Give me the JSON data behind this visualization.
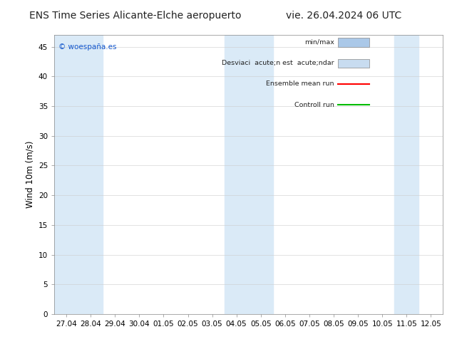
{
  "title_left": "ENS Time Series Alicante-Elche aeropuerto",
  "title_right": "vie. 26.04.2024 06 UTC",
  "ylabel": "Wind 10m (m/s)",
  "watermark": "© woespaña.es",
  "ylim": [
    0,
    47
  ],
  "yticks": [
    0,
    5,
    10,
    15,
    20,
    25,
    30,
    35,
    40,
    45
  ],
  "x_labels": [
    "27.04",
    "28.04",
    "29.04",
    "30.04",
    "01.05",
    "02.05",
    "03.05",
    "04.05",
    "05.05",
    "06.05",
    "07.05",
    "08.05",
    "09.05",
    "10.05",
    "11.05",
    "12.05"
  ],
  "shaded_indices": [
    0,
    1,
    7,
    8,
    14
  ],
  "bg_color": "#ffffff",
  "shade_color": "#daeaf7",
  "plot_bg": "#ffffff",
  "legend_items": [
    {
      "label": "min/max",
      "color": "#aac8e8",
      "type": "hbar"
    },
    {
      "label": "Desviaci  acute;n est  acute;ndar",
      "color": "#c8dcf0",
      "type": "hbar"
    },
    {
      "label": "Ensemble mean run",
      "color": "#ff0000",
      "type": "line"
    },
    {
      "label": "Controll run",
      "color": "#00bb00",
      "type": "line"
    }
  ],
  "title_fontsize": 10,
  "tick_fontsize": 7.5,
  "ylabel_fontsize": 8.5
}
